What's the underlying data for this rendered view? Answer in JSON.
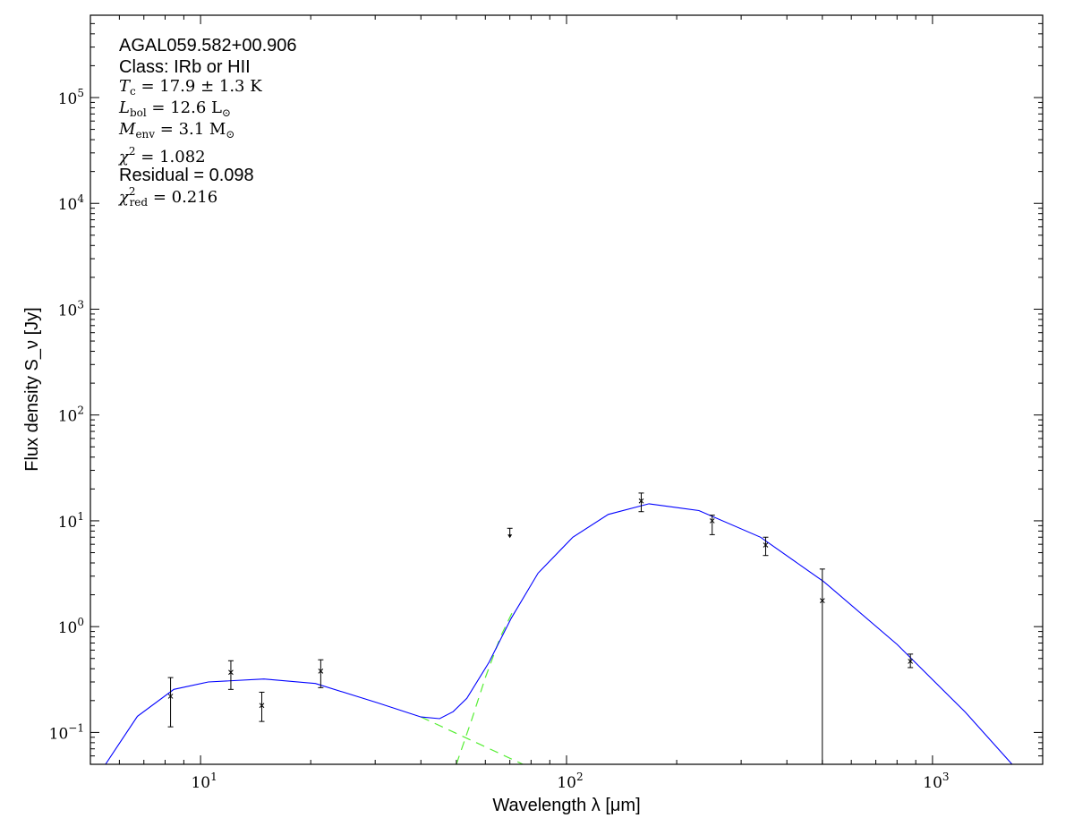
{
  "chart_data": {
    "type": "scatter",
    "xlabel": "Wavelength λ [μm]",
    "ylabel": "Flux density S_ν [Jy]",
    "xscale": "log",
    "yscale": "log",
    "xlim": [
      5,
      2000
    ],
    "ylim": [
      0.05,
      600000
    ],
    "grid": false,
    "x_ticks": [
      10,
      100,
      1000
    ],
    "x_tick_labels": [
      {
        "base": "10",
        "exp": "1"
      },
      {
        "base": "10",
        "exp": "2"
      },
      {
        "base": "10",
        "exp": "3"
      }
    ],
    "y_ticks": [
      0.1,
      1,
      10,
      100,
      1000,
      10000,
      100000
    ],
    "y_tick_labels": [
      {
        "base": "10",
        "exp": "−1"
      },
      {
        "base": "10",
        "exp": "0"
      },
      {
        "base": "10",
        "exp": "1"
      },
      {
        "base": "10",
        "exp": "2"
      },
      {
        "base": "10",
        "exp": "3"
      },
      {
        "base": "10",
        "exp": "4"
      },
      {
        "base": "10",
        "exp": "5"
      }
    ],
    "annotations": {
      "source": "AGAL059.582+00.906",
      "class": "Class: IRb or HII",
      "tc": {
        "sym": "T",
        "sub": "c",
        "rest": " = 17.9 ± 1.3 K"
      },
      "lbol": {
        "sym": "L",
        "sub": "bol",
        "rest": " = 12.6 L",
        "unit_sub": "⊙"
      },
      "menv": {
        "sym": "M",
        "sub": "env",
        "rest": " = 3.1 M",
        "unit_sub": "⊙"
      },
      "chi2": {
        "sym": "χ",
        "sup": "2",
        "rest": " = 1.082"
      },
      "residual": "Residual = 0.098",
      "chi2red": {
        "sym": "χ",
        "sup": "2",
        "sub": "red",
        "rest": " = 0.216"
      }
    },
    "points": [
      {
        "x": 8.28,
        "y": 0.22,
        "lo": 0.113,
        "hi": 0.33
      },
      {
        "x": 12.1,
        "y": 0.37,
        "lo": 0.255,
        "hi": 0.476
      },
      {
        "x": 14.7,
        "y": 0.18,
        "lo": 0.127,
        "hi": 0.24
      },
      {
        "x": 21.3,
        "y": 0.38,
        "lo": 0.265,
        "hi": 0.486
      },
      {
        "x": 160,
        "y": 15.4,
        "lo": 12.2,
        "hi": 18.3
      },
      {
        "x": 250,
        "y": 10.0,
        "lo": 7.4,
        "hi": 11.3
      },
      {
        "x": 350,
        "y": 5.9,
        "lo": 4.7,
        "hi": 7.0
      },
      {
        "x": 500,
        "y": 1.76,
        "lo": 0.05,
        "hi": 3.5
      },
      {
        "x": 870,
        "y": 0.47,
        "lo": 0.41,
        "hi": 0.55
      }
    ],
    "upper_limits": [
      {
        "x": 70,
        "y": 8.5
      }
    ],
    "model": {
      "color": "#0000ff",
      "x": [
        5.5,
        6.72,
        8.45,
        10.5,
        14.9,
        20.6,
        30.5,
        40,
        45,
        49,
        53.4,
        61.4,
        70.6,
        83.6,
        104,
        130,
        168,
        230,
        339,
        505,
        800,
        1230,
        1650
      ],
      "y": [
        0.05,
        0.142,
        0.255,
        0.3,
        0.32,
        0.29,
        0.19,
        0.14,
        0.135,
        0.157,
        0.21,
        0.46,
        1.2,
        3.2,
        7.0,
        11.5,
        14.5,
        12.5,
        7.0,
        2.65,
        0.68,
        0.155,
        0.05
      ]
    },
    "components": {
      "color": "#55ee33",
      "hot": {
        "x": [
          40,
          76
        ],
        "y": [
          0.14,
          0.05
        ]
      },
      "cold": {
        "x": [
          50,
          55,
          60,
          66,
          72
        ],
        "y": [
          0.05,
          0.13,
          0.33,
          0.8,
          1.5
        ]
      }
    }
  }
}
